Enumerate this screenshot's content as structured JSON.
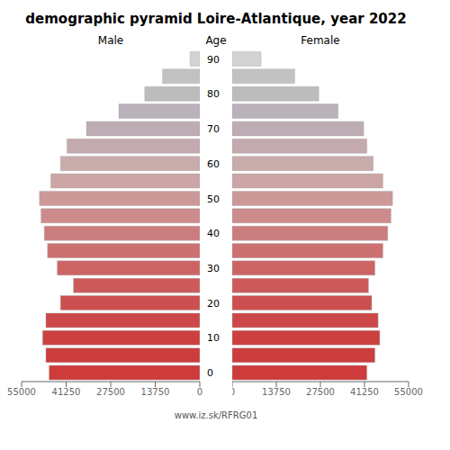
{
  "chart_data": {
    "type": "bar",
    "orientation": "horizontal",
    "title": "demographic pyramid Loire-Atlantique, year 2022",
    "ylabel": "Age",
    "annotations": [
      "www.iz.sk/RFRG01"
    ],
    "categories": [
      "0",
      null,
      "10",
      null,
      "20",
      null,
      "30",
      null,
      "40",
      null,
      "50",
      null,
      "60",
      null,
      "70",
      null,
      "80",
      null,
      "90"
    ],
    "series": [
      {
        "name": "Male",
        "values": [
          46500,
          47500,
          48500,
          47500,
          43000,
          39000,
          44000,
          47000,
          48000,
          49000,
          49500,
          46000,
          43000,
          41000,
          35000,
          25000,
          17000,
          11500,
          3000
        ],
        "colors": [
          "#cd3b3b",
          "#cc3d3d",
          "#cc4040",
          "#cc4848",
          "#cc5050",
          "#cc5a5a",
          "#cc6464",
          "#cc7070",
          "#cc7e7e",
          "#cc8c8c",
          "#cc9898",
          "#cca6a6",
          "#c8acac",
          "#c3aaae",
          "#bdacb4",
          "#b9b2ba",
          "#bcbcbc",
          "#c2c2c2",
          "#d2d2d2"
        ]
      },
      {
        "name": "Female",
        "values": [
          42000,
          44500,
          46000,
          45500,
          43500,
          42500,
          44500,
          47000,
          48500,
          49500,
          50000,
          47000,
          44000,
          42000,
          41000,
          33000,
          27000,
          19500,
          9000
        ],
        "colors": [
          "#cd3b3b",
          "#cc3d3d",
          "#cc4040",
          "#cc4848",
          "#cc5050",
          "#cc5a5a",
          "#cc6464",
          "#cc7070",
          "#cc7e7e",
          "#cc8c8c",
          "#cc9898",
          "#cca6a6",
          "#c8acac",
          "#c3aaae",
          "#bdacb4",
          "#b9b2ba",
          "#bcbcbc",
          "#c2c2c2",
          "#d2d2d2"
        ]
      }
    ],
    "xlim": [
      0,
      55000
    ],
    "xticks": [
      0,
      13750,
      27500,
      41250,
      55000
    ]
  }
}
